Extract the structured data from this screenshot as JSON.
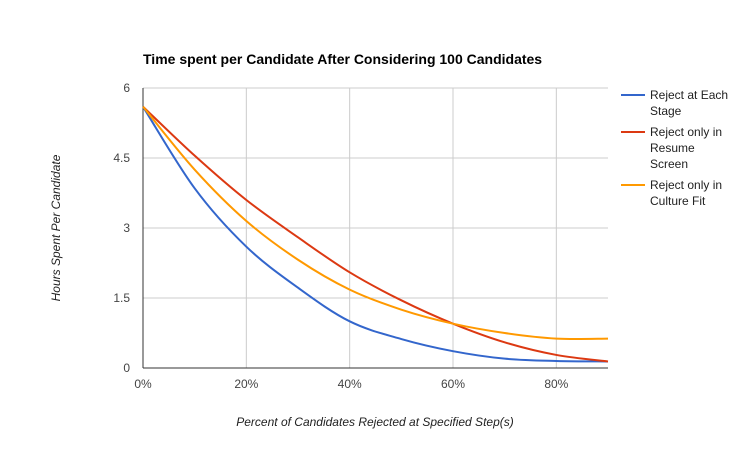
{
  "chart_data": {
    "type": "line",
    "title": "Time spent per Candidate After Considering 100 Candidates",
    "xlabel": "Percent of Candidates Rejected at Specified Step(s)",
    "ylabel": "Hours Spent Per Candidate",
    "xlim": [
      0,
      0.9
    ],
    "ylim": [
      0,
      6
    ],
    "x_ticks": [
      0,
      0.2,
      0.4,
      0.6,
      0.8
    ],
    "x_tick_labels": [
      "0%",
      "20%",
      "40%",
      "60%",
      "80%"
    ],
    "y_ticks": [
      0,
      1.5,
      3,
      4.5,
      6
    ],
    "y_tick_labels": [
      "0",
      "1.5",
      "3",
      "4.5",
      "6"
    ],
    "grid": true,
    "legend_position": "right",
    "x": [
      0,
      0.1,
      0.2,
      0.3,
      0.4,
      0.5,
      0.6,
      0.7,
      0.8,
      0.9
    ],
    "series": [
      {
        "name": "Reject at Each Stage",
        "color": "#3366cc",
        "values": [
          5.6,
          3.85,
          2.6,
          1.72,
          1.0,
          0.62,
          0.36,
          0.2,
          0.15,
          0.14
        ]
      },
      {
        "name": "Reject only in Resume Screen",
        "color": "#dc3912",
        "values": [
          5.6,
          4.55,
          3.6,
          2.8,
          2.05,
          1.45,
          0.95,
          0.55,
          0.28,
          0.14
        ]
      },
      {
        "name": "Reject only in Culture Fit",
        "color": "#ff9900",
        "values": [
          5.6,
          4.25,
          3.15,
          2.32,
          1.68,
          1.25,
          0.95,
          0.75,
          0.63,
          0.63
        ]
      }
    ],
    "legend_lines": [
      [
        "Reject at Each",
        "Stage"
      ],
      [
        "Reject only in",
        "Resume",
        "Screen"
      ],
      [
        "Reject only in",
        "Culture Fit"
      ]
    ]
  }
}
